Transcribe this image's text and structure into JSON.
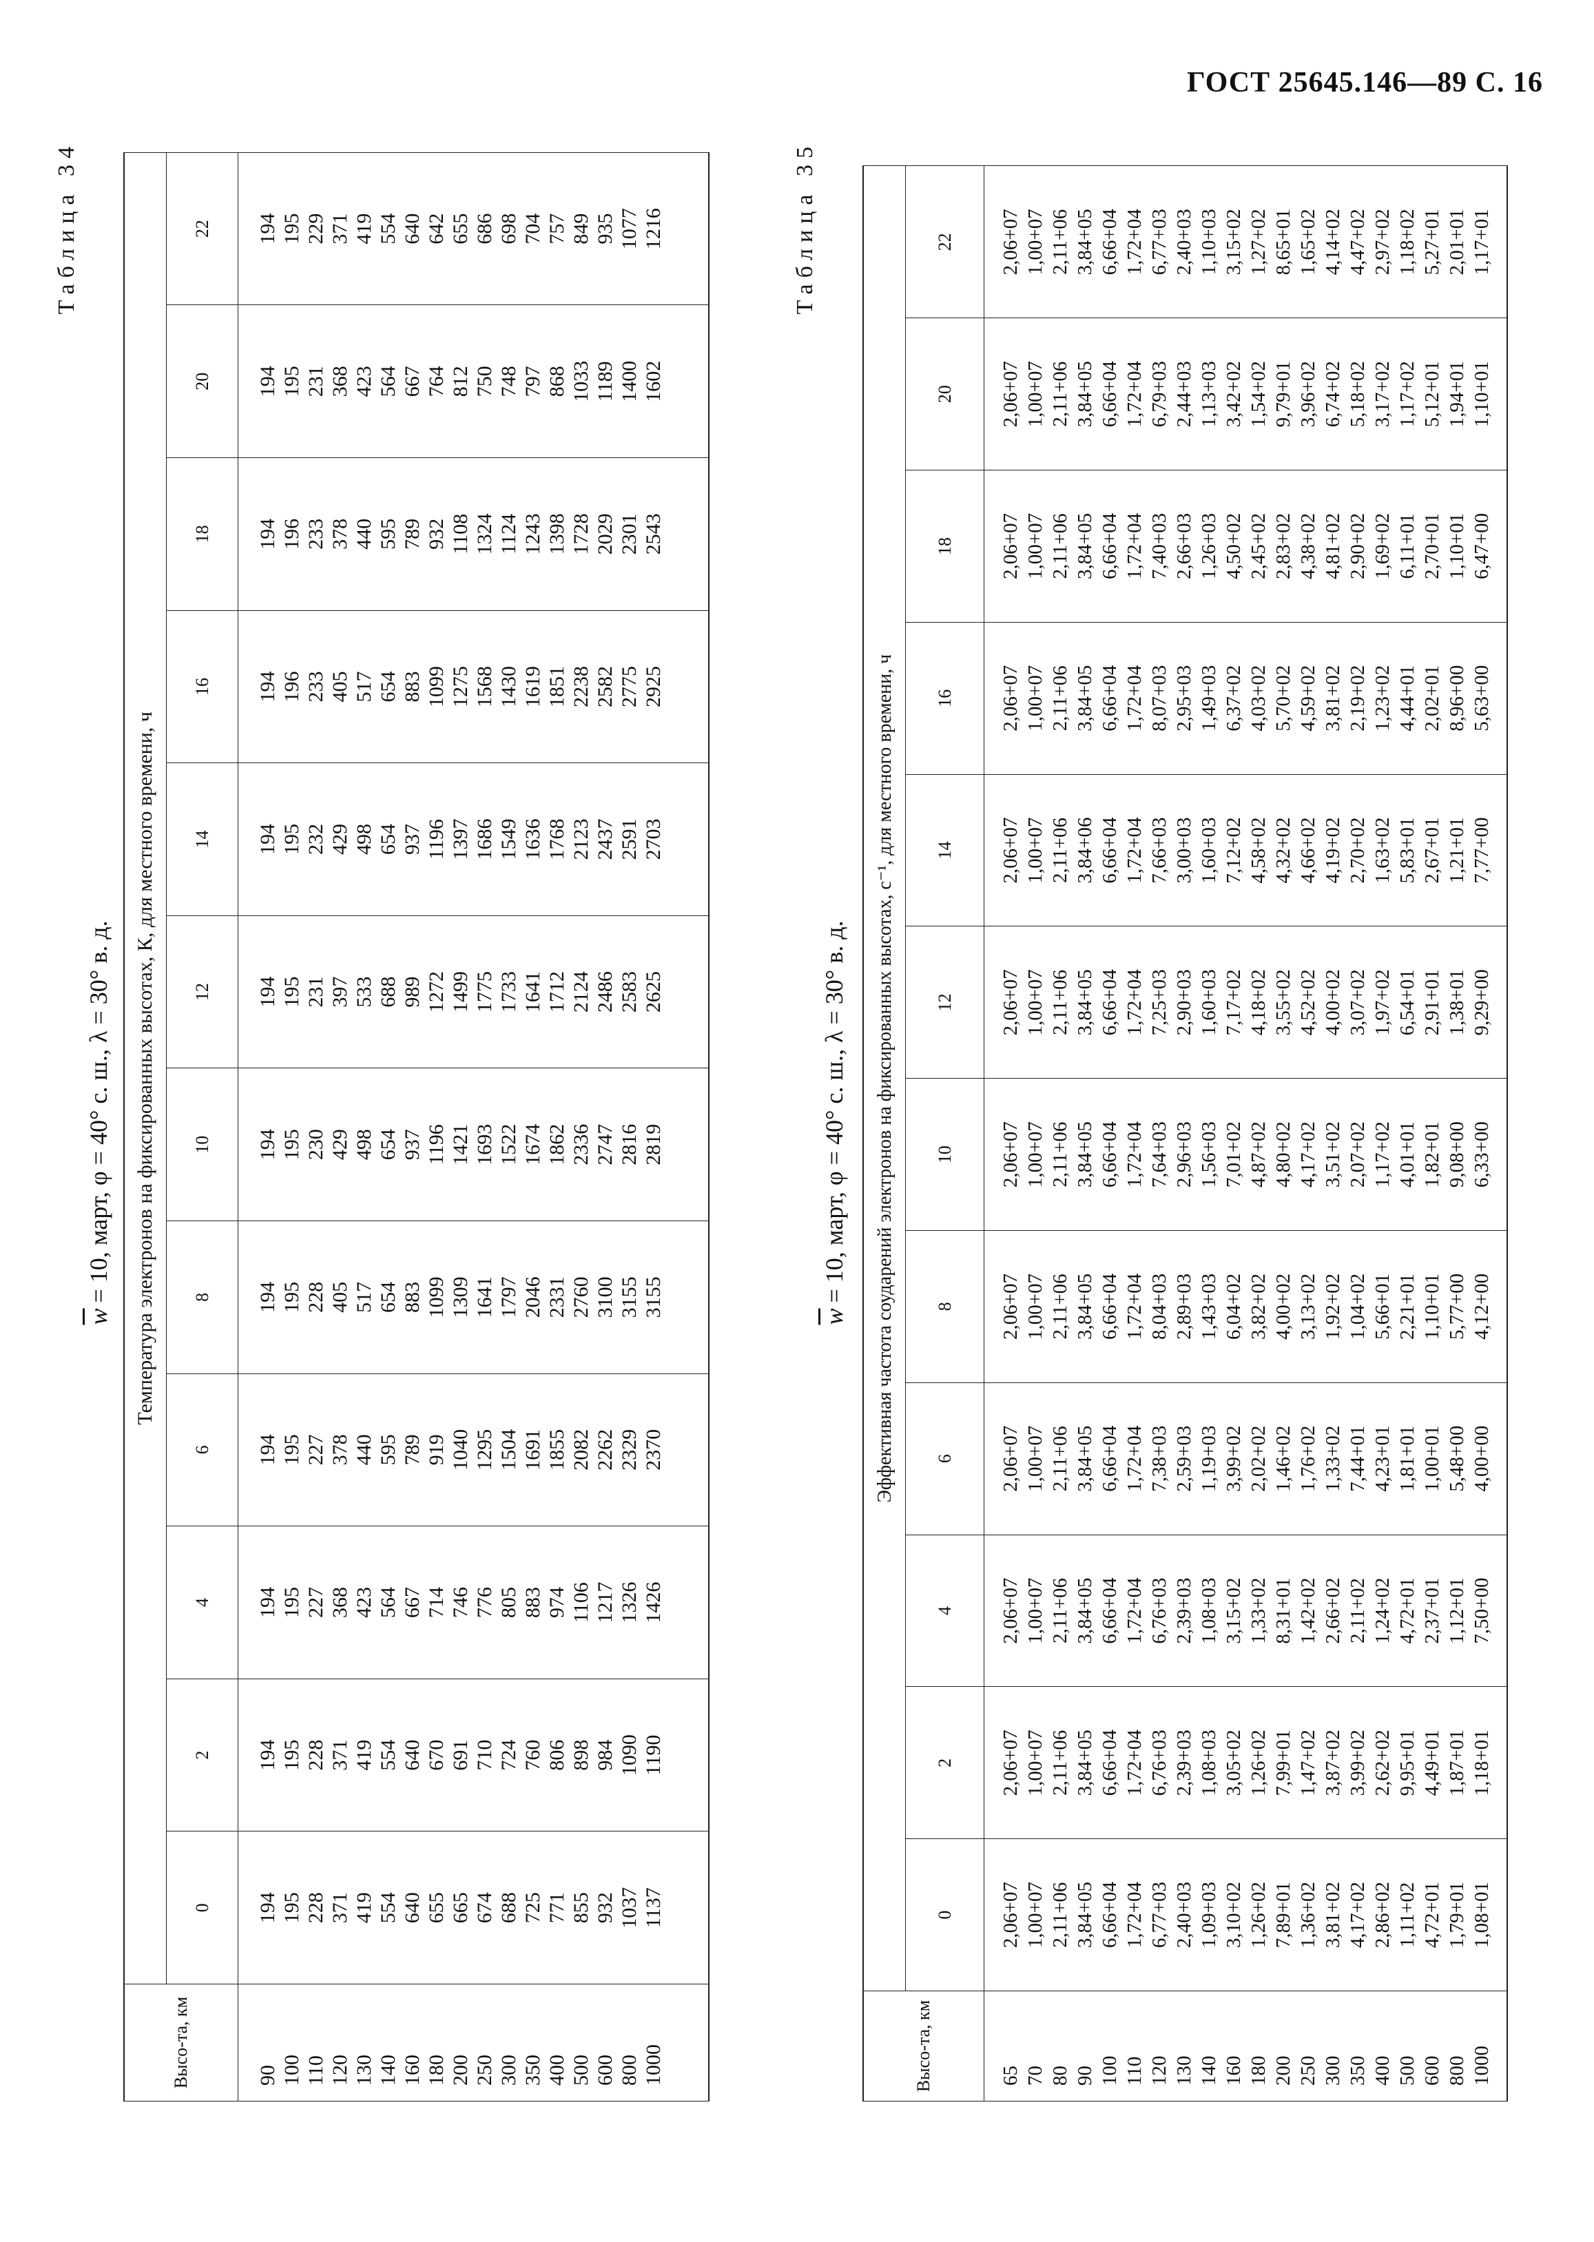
{
  "header": {
    "page_title": "ГОСТ 25645.146—89 С. 16"
  },
  "tables": [
    {
      "caption": "Таблица 34",
      "subtitle_symbol": "w",
      "subtitle": "= 10, март, φ = 40° с. ш., λ = 30° в. д.",
      "row_header": "Высо-та, км",
      "column_group": "Температура электронов на фиксированных высотах, К, для местного времени, ч",
      "columns": [
        "0",
        "2",
        "4",
        "6",
        "8",
        "10",
        "12",
        "14",
        "16",
        "18",
        "20",
        "22"
      ],
      "heights": [
        "90",
        "100",
        "110",
        "120",
        "130",
        "140",
        "160",
        "180",
        "200",
        "250",
        "300",
        "350",
        "400",
        "500",
        "600",
        "800",
        "1000"
      ],
      "values": [
        [
          "194",
          "195",
          "228",
          "371",
          "419",
          "554",
          "640",
          "655",
          "665",
          "674",
          "688",
          "725",
          "771",
          "855",
          "932",
          "1037",
          "1137"
        ],
        [
          "194",
          "195",
          "228",
          "371",
          "419",
          "554",
          "640",
          "670",
          "691",
          "710",
          "724",
          "760",
          "806",
          "898",
          "984",
          "1090",
          "1190"
        ],
        [
          "194",
          "195",
          "227",
          "368",
          "423",
          "564",
          "667",
          "714",
          "746",
          "776",
          "805",
          "883",
          "974",
          "1106",
          "1217",
          "1326",
          "1426"
        ],
        [
          "194",
          "195",
          "227",
          "378",
          "440",
          "595",
          "789",
          "919",
          "1040",
          "1295",
          "1504",
          "1691",
          "1855",
          "2082",
          "2262",
          "2329",
          "2370"
        ],
        [
          "194",
          "195",
          "228",
          "405",
          "517",
          "654",
          "883",
          "1099",
          "1309",
          "1641",
          "1797",
          "2046",
          "2331",
          "2760",
          "3100",
          "3155",
          "3155"
        ],
        [
          "194",
          "195",
          "230",
          "429",
          "498",
          "654",
          "937",
          "1196",
          "1421",
          "1693",
          "1522",
          "1674",
          "1862",
          "2336",
          "2747",
          "2816",
          "2819"
        ],
        [
          "194",
          "195",
          "231",
          "397",
          "533",
          "688",
          "989",
          "1272",
          "1499",
          "1775",
          "1733",
          "1641",
          "1712",
          "2124",
          "2486",
          "2583",
          "2625"
        ],
        [
          "194",
          "195",
          "232",
          "429",
          "498",
          "654",
          "937",
          "1196",
          "1397",
          "1686",
          "1549",
          "1636",
          "1768",
          "2123",
          "2437",
          "2591",
          "2703"
        ],
        [
          "194",
          "196",
          "233",
          "405",
          "517",
          "654",
          "883",
          "1099",
          "1275",
          "1568",
          "1430",
          "1619",
          "1851",
          "2238",
          "2582",
          "2775",
          "2925"
        ],
        [
          "194",
          "196",
          "233",
          "378",
          "440",
          "595",
          "789",
          "932",
          "1108",
          "1324",
          "1124",
          "1243",
          "1398",
          "1728",
          "2029",
          "2301",
          "2543"
        ],
        [
          "194",
          "195",
          "231",
          "368",
          "423",
          "564",
          "667",
          "764",
          "812",
          "750",
          "748",
          "797",
          "868",
          "1033",
          "1189",
          "1400",
          "1602"
        ],
        [
          "194",
          "195",
          "229",
          "371",
          "419",
          "554",
          "640",
          "642",
          "655",
          "686",
          "698",
          "704",
          "757",
          "849",
          "935",
          "1077",
          "1216"
        ]
      ]
    },
    {
      "caption": "Таблица 35",
      "subtitle_symbol": "w",
      "subtitle": "= 10, март, φ = 40° с. ш., λ = 30° в. д.",
      "row_header": "Высо-та, км",
      "column_group": "Эффективная частота соударений электронов на фиксированных высотах, с⁻¹, для местного времени, ч",
      "columns": [
        "0",
        "2",
        "4",
        "6",
        "8",
        "10",
        "12",
        "14",
        "16",
        "18",
        "20",
        "22"
      ],
      "heights": [
        "65",
        "70",
        "80",
        "90",
        "100",
        "110",
        "120",
        "130",
        "140",
        "160",
        "180",
        "200",
        "250",
        "300",
        "350",
        "400",
        "500",
        "600",
        "800",
        "1000"
      ],
      "values": [
        [
          "2,06+07",
          "1,00+07",
          "2,11+06",
          "3,84+05",
          "6,66+04",
          "1,72+04",
          "6,77+03",
          "2,40+03",
          "1,09+03",
          "3,10+02",
          "1,26+02",
          "7,89+01",
          "1,36+02",
          "3,81+02",
          "4,17+02",
          "2,86+02",
          "1,11+02",
          "4,72+01",
          "1,79+01",
          "1,08+01"
        ],
        [
          "2,06+07",
          "1,00+07",
          "2,11+06",
          "3,84+05",
          "6,66+04",
          "1,72+04",
          "6,76+03",
          "2,39+03",
          "1,08+03",
          "3,05+02",
          "1,26+02",
          "7,99+01",
          "1,47+02",
          "3,87+02",
          "3,99+02",
          "2,62+02",
          "9,95+01",
          "4,49+01",
          "1,87+01",
          "1,18+01"
        ],
        [
          "2,06+07",
          "1,00+07",
          "2,11+06",
          "3,84+05",
          "6,66+04",
          "1,72+04",
          "6,76+03",
          "2,39+03",
          "1,08+03",
          "3,15+02",
          "1,33+02",
          "8,31+01",
          "1,42+02",
          "2,66+02",
          "2,11+02",
          "1,24+02",
          "4,72+01",
          "2,37+01",
          "1,12+01",
          "7,50+00"
        ],
        [
          "2,06+07",
          "1,00+07",
          "2,11+06",
          "3,84+05",
          "6,66+04",
          "1,72+04",
          "7,38+03",
          "2,59+03",
          "1,19+03",
          "3,99+02",
          "2,02+02",
          "1,46+02",
          "1,76+02",
          "1,33+02",
          "7,44+01",
          "4,23+01",
          "1,81+01",
          "1,00+01",
          "5,48+00",
          "4,00+00"
        ],
        [
          "2,06+07",
          "1,00+07",
          "2,11+06",
          "3,84+05",
          "6,66+04",
          "1,72+04",
          "8,04+03",
          "2,89+03",
          "1,43+03",
          "6,04+02",
          "3,82+02",
          "4,00+02",
          "3,13+02",
          "1,92+02",
          "1,04+02",
          "5,66+01",
          "2,21+01",
          "1,10+01",
          "5,77+00",
          "4,12+00"
        ],
        [
          "2,06+07",
          "1,00+07",
          "2,11+06",
          "3,84+05",
          "6,66+04",
          "1,72+04",
          "7,64+03",
          "2,96+03",
          "1,56+03",
          "7,01+02",
          "4,87+02",
          "4,80+02",
          "4,17+02",
          "3,51+02",
          "2,07+02",
          "1,17+02",
          "4,01+01",
          "1,82+01",
          "9,08+00",
          "6,33+00"
        ],
        [
          "2,06+07",
          "1,00+07",
          "2,11+06",
          "3,84+05",
          "6,66+04",
          "1,72+04",
          "7,25+03",
          "2,90+03",
          "1,60+03",
          "7,17+02",
          "4,18+02",
          "3,55+02",
          "4,52+02",
          "4,00+02",
          "3,07+02",
          "1,97+02",
          "6,54+01",
          "2,91+01",
          "1,38+01",
          "9,29+00"
        ],
        [
          "2,06+07",
          "1,00+07",
          "2,11+06",
          "3,84+06",
          "6,66+04",
          "1,72+04",
          "7,66+03",
          "3,00+03",
          "1,60+03",
          "7,12+02",
          "4,58+02",
          "4,32+02",
          "4,66+02",
          "4,19+02",
          "2,70+02",
          "1,63+02",
          "5,83+01",
          "2,67+01",
          "1,21+01",
          "7,77+00"
        ],
        [
          "2,06+07",
          "1,00+07",
          "2,11+06",
          "3,84+05",
          "6,66+04",
          "1,72+04",
          "8,07+03",
          "2,95+03",
          "1,49+03",
          "6,37+02",
          "4,03+02",
          "5,70+02",
          "4,59+02",
          "3,81+02",
          "2,19+02",
          "1,23+02",
          "4,44+01",
          "2,02+01",
          "8,96+00",
          "5,63+00"
        ],
        [
          "2,06+07",
          "1,00+07",
          "2,11+06",
          "3,84+05",
          "6,66+04",
          "1,72+04",
          "7,40+03",
          "2,66+03",
          "1,26+03",
          "4,50+02",
          "2,45+02",
          "2,83+02",
          "4,38+02",
          "4,81+02",
          "2,90+02",
          "1,69+02",
          "6,11+01",
          "2,70+01",
          "1,10+01",
          "6,47+00"
        ],
        [
          "2,06+07",
          "1,00+07",
          "2,11+06",
          "3,84+05",
          "6,66+04",
          "1,72+04",
          "6,79+03",
          "2,44+03",
          "1,13+03",
          "3,42+02",
          "1,54+02",
          "9,79+01",
          "3,96+02",
          "6,74+02",
          "5,18+02",
          "3,17+02",
          "1,17+02",
          "5,12+01",
          "1,94+01",
          "1,10+01"
        ],
        [
          "2,06+07",
          "1,00+07",
          "2,11+06",
          "3,84+05",
          "6,66+04",
          "1,72+04",
          "6,77+03",
          "2,40+03",
          "1,10+03",
          "3,15+02",
          "1,27+02",
          "8,65+01",
          "1,65+02",
          "4,14+02",
          "4,47+02",
          "2,97+02",
          "1,18+02",
          "5,27+01",
          "2,01+01",
          "1,17+01"
        ]
      ]
    }
  ]
}
